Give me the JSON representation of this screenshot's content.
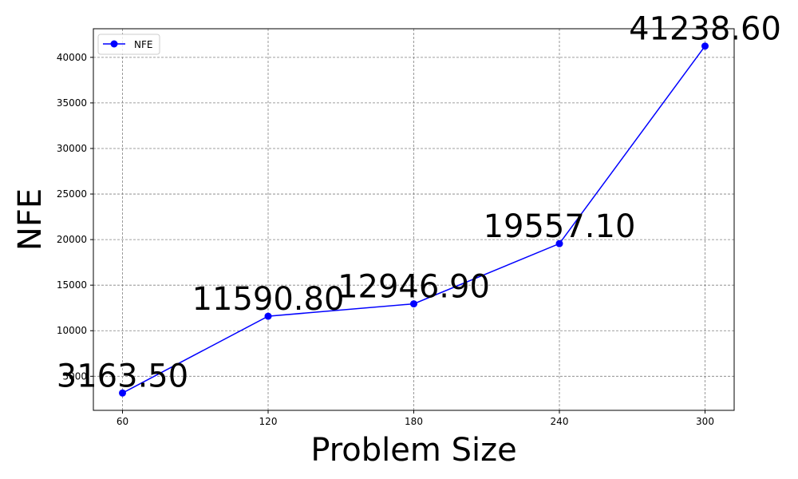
{
  "chart_data": {
    "type": "line",
    "title": "",
    "xlabel": "Problem Size",
    "ylabel": "NFE",
    "x": [
      60,
      120,
      180,
      240,
      300
    ],
    "x_tick_labels": [
      "60",
      "120",
      "180",
      "240",
      "300"
    ],
    "series": [
      {
        "name": "NFE",
        "color": "#0000ff",
        "marker": "circle",
        "values": [
          3163.5,
          11590.8,
          12946.9,
          19557.1,
          41238.6
        ],
        "data_labels": [
          "3163.50",
          "11590.80",
          "12946.90",
          "19557.10",
          "41238.60"
        ]
      }
    ],
    "y_ticks": [
      5000,
      10000,
      15000,
      20000,
      25000,
      30000,
      35000,
      40000
    ],
    "y_tick_labels": [
      "5000",
      "10000",
      "15000",
      "20000",
      "25000",
      "30000",
      "35000",
      "40000"
    ],
    "xlim": [
      48,
      312
    ],
    "ylim": [
      1260,
      43140
    ],
    "grid": true,
    "legend": "upper-left"
  }
}
